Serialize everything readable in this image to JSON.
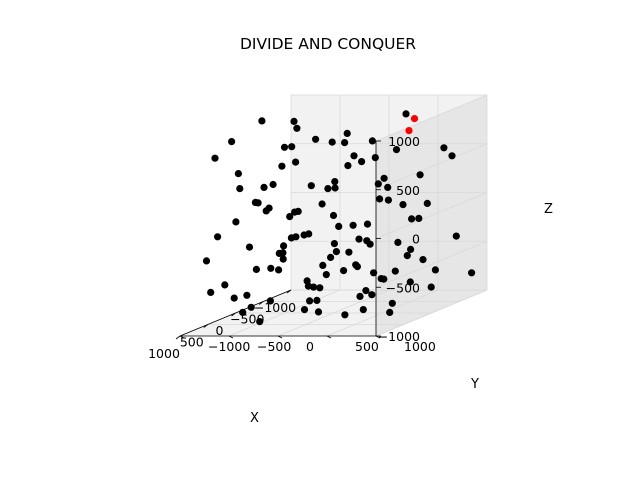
{
  "chart_data": {
    "type": "scatter3d",
    "title": "DIVIDE AND CONQUER",
    "xlabel": "X",
    "ylabel": "Y",
    "zlabel": "Z",
    "xlim": [
      -1000,
      1000
    ],
    "ylim": [
      -1000,
      1000
    ],
    "zlim": [
      -1000,
      1000
    ],
    "x_ticks": [
      "−1000",
      "−500",
      "0",
      "500",
      "1000"
    ],
    "y_ticks": [
      "−1000",
      "−500",
      "0",
      "500",
      "1000"
    ],
    "z_ticks": [
      "−1000",
      "−500",
      "0",
      "500",
      "1000"
    ],
    "grid": true,
    "colors": {
      "points": "#000000",
      "highlight": "#ff0000",
      "pane": "#f2f2f2",
      "pane_dark": "#e6e6e6",
      "grid": "#d9d9d9"
    },
    "series": [
      {
        "points": [
          [
            -800,
            -900,
            -200
          ],
          [
            -500,
            -900,
            200
          ],
          [
            -200,
            -900,
            -600
          ],
          [
            200,
            -900,
            -800
          ],
          [
            700,
            -900,
            -300
          ],
          [
            -700,
            -600,
            -900
          ],
          [
            -300,
            -600,
            -300
          ],
          [
            100,
            -600,
            100
          ],
          [
            500,
            -600,
            -700
          ],
          [
            900,
            -600,
            -500
          ],
          [
            -900,
            -300,
            400
          ],
          [
            -400,
            -300,
            -700
          ],
          [
            0,
            -300,
            -200
          ],
          [
            400,
            -300,
            600
          ],
          [
            800,
            -300,
            -900
          ],
          [
            -600,
            0,
            -400
          ],
          [
            -200,
            0,
            700
          ],
          [
            300,
            0,
            -800
          ],
          [
            700,
            0,
            200
          ],
          [
            900,
            0,
            -100
          ],
          [
            -800,
            300,
            -600
          ],
          [
            -300,
            300,
            100
          ],
          [
            100,
            300,
            -500
          ],
          [
            500,
            300,
            400
          ],
          [
            800,
            300,
            -800
          ],
          [
            -500,
            600,
            300
          ],
          [
            0,
            600,
            -900
          ],
          [
            400,
            600,
            -200
          ],
          [
            800,
            600,
            700
          ],
          [
            -900,
            900,
            -800
          ],
          [
            -400,
            900,
            600
          ],
          [
            200,
            900,
            -300
          ],
          [
            600,
            900,
            300
          ],
          [
            900,
            900,
            -600
          ],
          [
            -700,
            -800,
            800
          ],
          [
            -100,
            -700,
            -900
          ],
          [
            300,
            -800,
            500
          ],
          [
            600,
            -700,
            900
          ],
          [
            -900,
            -500,
            -500
          ],
          [
            -200,
            -500,
            500
          ],
          [
            200,
            -400,
            -400
          ],
          [
            700,
            -400,
            300
          ],
          [
            -600,
            -200,
            700
          ],
          [
            100,
            -200,
            -700
          ],
          [
            500,
            -100,
            -100
          ],
          [
            -800,
            100,
            100
          ],
          [
            -300,
            100,
            -900
          ],
          [
            200,
            100,
            800
          ],
          [
            600,
            200,
            -600
          ],
          [
            -700,
            400,
            -200
          ],
          [
            -100,
            400,
            300
          ],
          [
            300,
            500,
            -700
          ],
          [
            700,
            500,
            -400
          ],
          [
            -600,
            700,
            -700
          ],
          [
            -200,
            800,
            -500
          ],
          [
            400,
            800,
            -900
          ],
          [
            800,
            800,
            100
          ],
          [
            -300,
            -900,
            900
          ],
          [
            500,
            -900,
            -100
          ],
          [
            -900,
            -100,
            -800
          ],
          [
            0,
            0,
            0
          ],
          [
            400,
            -700,
            -900
          ],
          [
            900,
            -200,
            500
          ],
          [
            -500,
            500,
            -800
          ],
          [
            100,
            700,
            700
          ],
          [
            -100,
            -300,
            -900
          ],
          [
            600,
            -500,
            -800
          ],
          [
            -400,
            -600,
            800
          ],
          [
            300,
            200,
            -300
          ],
          [
            -800,
            -400,
            -300
          ],
          [
            700,
            100,
            -800
          ],
          [
            -200,
            -100,
            300
          ],
          [
            500,
            400,
            -900
          ],
          [
            -600,
            -900,
            -700
          ],
          [
            100,
            -900,
            300
          ],
          [
            800,
            -800,
            -600
          ],
          [
            -900,
            700,
            400
          ],
          [
            300,
            -100,
            -600
          ],
          [
            -100,
            900,
            100
          ],
          [
            600,
            -300,
            -400
          ],
          [
            -500,
            -400,
            0
          ],
          [
            200,
            600,
            -600
          ],
          [
            -700,
            0,
            600
          ],
          [
            900,
            400,
            -300
          ],
          [
            0,
            -500,
            700
          ],
          [
            -300,
            700,
            -100
          ],
          [
            400,
            0,
            400
          ],
          [
            -800,
            800,
            -400
          ],
          [
            700,
            700,
            -800
          ],
          [
            -400,
            200,
            500
          ],
          [
            100,
            -800,
            -300
          ],
          [
            -600,
            -700,
            -100
          ],
          [
            500,
            100,
            900
          ],
          [
            -200,
            400,
            -700
          ],
          [
            800,
            -100,
            -200
          ],
          [
            -900,
            200,
            -100
          ],
          [
            300,
            -600,
            200
          ],
          [
            -100,
            600,
            -300
          ],
          [
            600,
            600,
            -100
          ],
          [
            -500,
            -800,
            -500
          ],
          [
            200,
            400,
            600
          ],
          [
            -300,
            -200,
            -500
          ],
          [
            900,
            -700,
            800
          ],
          [
            -700,
            600,
            -900
          ],
          [
            0,
            200,
            -100
          ],
          [
            400,
            -200,
            800
          ],
          [
            -400,
            0,
            -600
          ],
          [
            700,
            -600,
            100
          ],
          [
            -100,
            100,
            -400
          ],
          [
            500,
            800,
            500
          ],
          [
            -600,
            400,
            900
          ],
          [
            100,
            0,
            300
          ],
          [
            800,
            200,
            0
          ],
          [
            -200,
            -800,
            0
          ],
          [
            300,
            800,
            -500
          ]
        ],
        "color": "#000000"
      },
      {
        "points": [
          [
            -400,
            600,
            900
          ],
          [
            -300,
            600,
            800
          ]
        ],
        "color": "#ff0000"
      }
    ]
  }
}
